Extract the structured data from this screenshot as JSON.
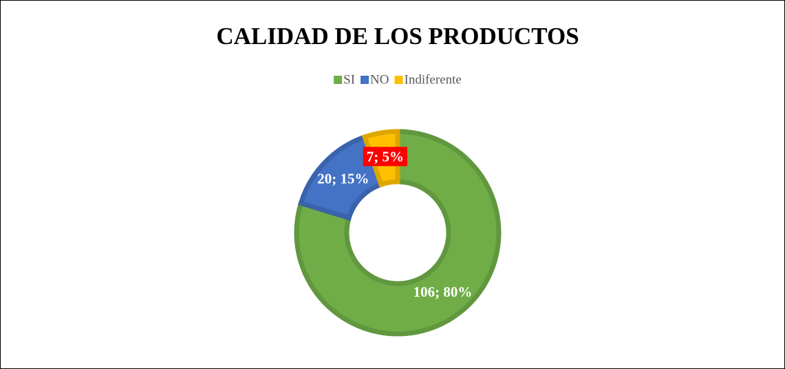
{
  "chart_data": {
    "type": "donut",
    "title": "CALIDAD DE LOS PRODUCTOS",
    "categories": [
      "SI",
      "NO",
      "Indiferente"
    ],
    "values": [
      106,
      20,
      7
    ],
    "value_labels": [
      "106; 80%",
      "20; 15%",
      "7; 5%"
    ],
    "colors": [
      "#70ad47",
      "#4472c4",
      "#ffc000"
    ],
    "legend": "top"
  }
}
